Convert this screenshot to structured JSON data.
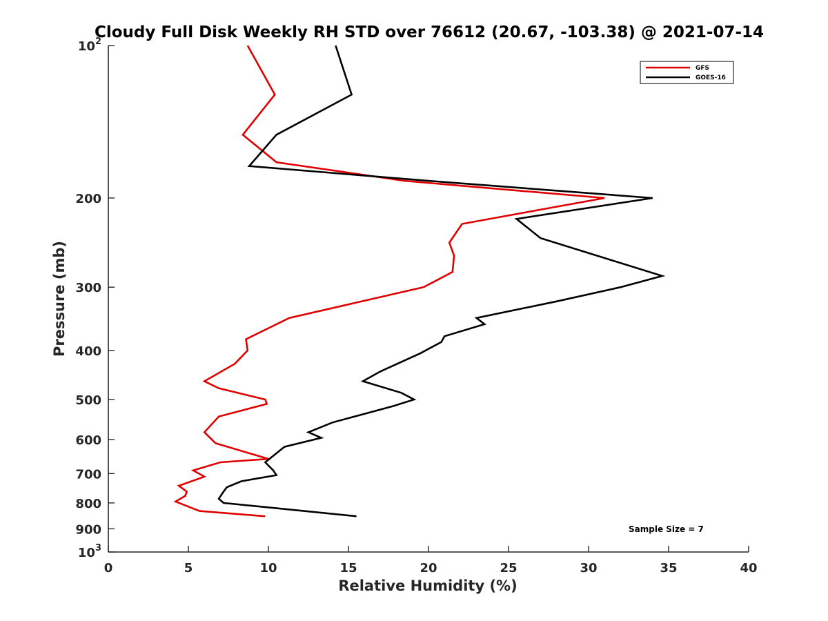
{
  "chart_data": {
    "type": "line",
    "title": "Cloudy Full Disk Weekly RH STD over 76612 (20.67, -103.38) @ 2021-07-14",
    "xlabel": "Relative Humidity (%)",
    "ylabel": "Pressure (mb)",
    "xlim": [
      0,
      40
    ],
    "ylim": [
      100,
      1000
    ],
    "yscale": "log",
    "yreversed": true,
    "grid": false,
    "x_ticks": [
      "0",
      "5",
      "10",
      "15",
      "20",
      "25",
      "30",
      "35",
      "40"
    ],
    "y_ticks": [
      {
        "value": 100,
        "base": "10",
        "exp": "2"
      },
      {
        "value": 200,
        "label": "200"
      },
      {
        "value": 300,
        "label": "300"
      },
      {
        "value": 400,
        "label": "400"
      },
      {
        "value": 500,
        "label": "500"
      },
      {
        "value": 600,
        "label": "600"
      },
      {
        "value": 700,
        "label": "700"
      },
      {
        "value": 800,
        "label": "800"
      },
      {
        "value": 900,
        "label": "900"
      },
      {
        "value": 1000,
        "base": "10",
        "exp": "3"
      }
    ],
    "legend_position": "top-right",
    "series": [
      {
        "name": "GFS",
        "color": "#e00000",
        "points": [
          [
            8.7,
            100
          ],
          [
            10.4,
            125
          ],
          [
            8.4,
            150
          ],
          [
            10.5,
            170
          ],
          [
            18.5,
            185
          ],
          [
            31.0,
            200
          ],
          [
            22.1,
            225
          ],
          [
            21.3,
            245
          ],
          [
            21.6,
            260
          ],
          [
            21.5,
            280
          ],
          [
            19.7,
            300
          ],
          [
            11.3,
            345
          ],
          [
            8.6,
            380
          ],
          [
            8.7,
            400
          ],
          [
            7.9,
            425
          ],
          [
            6.0,
            460
          ],
          [
            6.9,
            475
          ],
          [
            9.8,
            500
          ],
          [
            9.9,
            510
          ],
          [
            6.9,
            540
          ],
          [
            6.0,
            580
          ],
          [
            6.7,
            610
          ],
          [
            10.0,
            655
          ],
          [
            7.0,
            665
          ],
          [
            5.3,
            690
          ],
          [
            6.0,
            710
          ],
          [
            4.4,
            740
          ],
          [
            4.9,
            760
          ],
          [
            4.8,
            775
          ],
          [
            4.2,
            795
          ],
          [
            5.7,
            830
          ],
          [
            9.8,
            850
          ]
        ]
      },
      {
        "name": "GOES-16",
        "color": "#000000",
        "points": [
          [
            14.2,
            100
          ],
          [
            15.2,
            125
          ],
          [
            10.5,
            150
          ],
          [
            8.8,
            173
          ],
          [
            20.0,
            185
          ],
          [
            34.0,
            200
          ],
          [
            25.5,
            220
          ],
          [
            27.0,
            240
          ],
          [
            34.6,
            285
          ],
          [
            32.0,
            300
          ],
          [
            28.0,
            320
          ],
          [
            23.0,
            345
          ],
          [
            23.5,
            355
          ],
          [
            21.0,
            375
          ],
          [
            20.8,
            385
          ],
          [
            19.5,
            405
          ],
          [
            17.0,
            440
          ],
          [
            15.9,
            460
          ],
          [
            18.3,
            485
          ],
          [
            19.1,
            500
          ],
          [
            17.8,
            515
          ],
          [
            14.0,
            555
          ],
          [
            12.5,
            580
          ],
          [
            13.3,
            595
          ],
          [
            11.0,
            620
          ],
          [
            9.8,
            665
          ],
          [
            10.3,
            690
          ],
          [
            10.5,
            705
          ],
          [
            8.3,
            725
          ],
          [
            7.4,
            745
          ],
          [
            7.2,
            760
          ],
          [
            6.9,
            785
          ],
          [
            7.2,
            800
          ],
          [
            15.5,
            850
          ]
        ]
      }
    ],
    "annotations": [
      "Sample Size = 7"
    ]
  }
}
